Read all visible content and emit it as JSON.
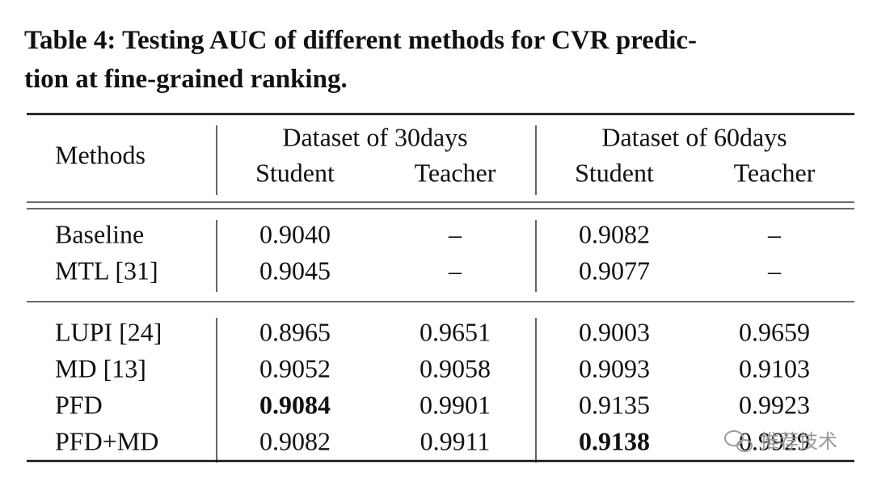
{
  "caption": [
    "Table 4: Testing AUC of different methods for CVR predic-",
    "tion at fine-grained ranking."
  ],
  "table": {
    "header": {
      "methods": "Methods",
      "groups": [
        {
          "label": "Dataset of 30days",
          "subs": [
            "Student",
            "Teacher"
          ]
        },
        {
          "label": "Dataset of 60days",
          "subs": [
            "Student",
            "Teacher"
          ]
        }
      ]
    },
    "row_groups": [
      [
        [
          "Baseline",
          "0.9040",
          "–",
          "0.9082",
          "–"
        ],
        [
          "MTL [31]",
          "0.9045",
          "–",
          "0.9077",
          "–"
        ]
      ],
      [
        [
          "LUPI [24]",
          "0.8965",
          "0.9651",
          "0.9003",
          "0.9659"
        ],
        [
          "MD [13]",
          "0.9052",
          "0.9058",
          "0.9093",
          "0.9103"
        ],
        [
          "PFD",
          "0.9084",
          "0.9901",
          "0.9135",
          "0.9923"
        ],
        [
          "PFD+MD",
          "0.9082",
          "0.9911",
          "0.9138",
          "0.9929"
        ]
      ]
    ],
    "bold": [
      [
        1,
        2,
        1
      ],
      [
        1,
        3,
        3
      ]
    ]
  },
  "watermark": "推荐技术"
}
